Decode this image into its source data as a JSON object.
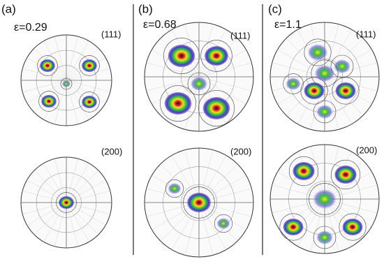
{
  "panels": [
    {
      "label": "(a)",
      "strain": "ε=0.29",
      "poles": [
        "(111)",
        "(200)"
      ]
    },
    {
      "label": "(b)",
      "strain": "ε=0.68",
      "poles": [
        "(111)",
        "(200)"
      ]
    },
    {
      "label": "(c)",
      "strain": "ε=1.1",
      "poles": [
        "(111)",
        "(200)"
      ]
    }
  ]
}
